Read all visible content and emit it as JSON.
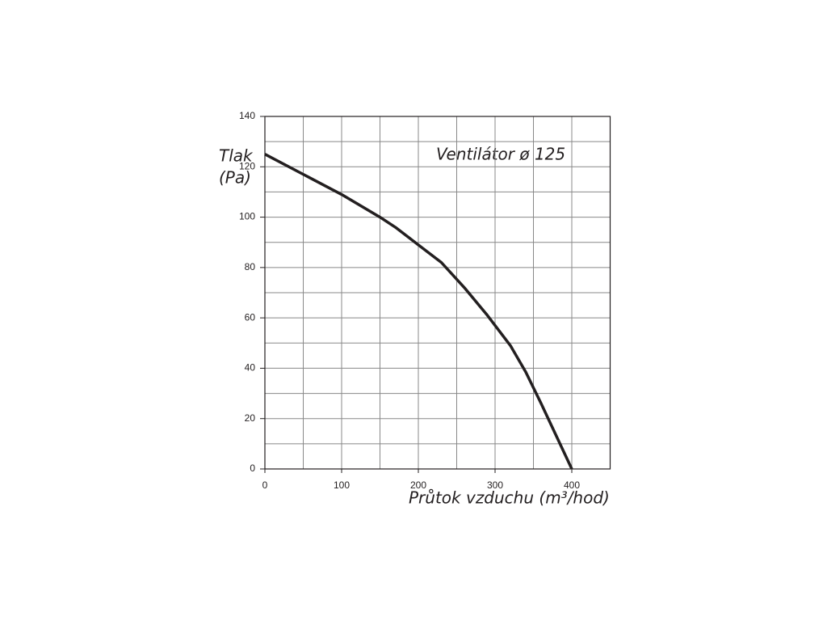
{
  "chart_data": {
    "type": "line",
    "title": "Ventilátor ø 125",
    "y_label": [
      "Tlak",
      "(Pa)"
    ],
    "x_label": "Průtok vzduchu (m³/hod)",
    "x": [
      0,
      50,
      100,
      150,
      170,
      200,
      230,
      260,
      290,
      320,
      340,
      360,
      380,
      400
    ],
    "series": [
      {
        "color": "#231f20",
        "values": [
          125,
          117,
          109,
          100,
          96,
          89,
          82,
          72,
          61,
          49,
          38.5,
          26,
          13,
          0
        ]
      }
    ],
    "xlim": [
      0,
      450
    ],
    "xticks": [
      0,
      100,
      200,
      300,
      400
    ],
    "ylim": [
      0,
      140
    ],
    "yticks": [
      0,
      20,
      40,
      60,
      80,
      100,
      120,
      140
    ],
    "xgrid": [
      0,
      50,
      100,
      150,
      200,
      250,
      300,
      350,
      400,
      450
    ],
    "ygrid": [
      0,
      10,
      20,
      30,
      40,
      50,
      60,
      70,
      80,
      90,
      100,
      110,
      120,
      130,
      140
    ],
    "grid": true
  }
}
